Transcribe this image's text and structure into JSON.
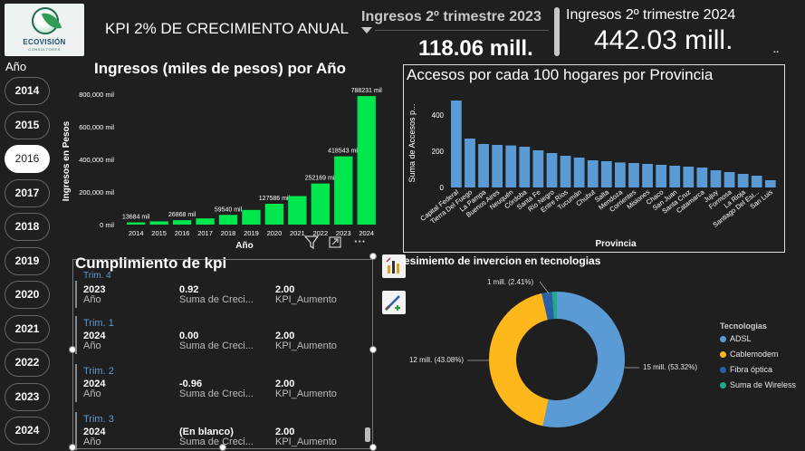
{
  "logo": {
    "name": "ECOVISIÓN",
    "subtitle": "CONSULTORES"
  },
  "header": {
    "kpi_title": "KPI 2% DE CRECIMIENTO ANUAL",
    "card_2023": {
      "title": "Ingresos 2º trimestre 2023",
      "value": "118.06 mill."
    },
    "card_2024": {
      "title": "Ingresos 2º trimestre 2024",
      "value": "442.03 mill."
    }
  },
  "year_slicer": {
    "title": "Año",
    "years": [
      "2014",
      "2015",
      "2016",
      "2017",
      "2018",
      "2019",
      "2020",
      "2021",
      "2022",
      "2023",
      "2024"
    ],
    "selected": "2016"
  },
  "bar_chart": {
    "title": "Ingresos (miles de pesos) por Año",
    "toolbar": {
      "filter_icon": "filter-icon",
      "focus_icon": "focus-mode-icon",
      "more_label": "···"
    },
    "chart_data": {
      "type": "bar",
      "title": "Ingresos (miles de pesos) por Año",
      "xlabel": "Año",
      "ylabel": "Ingresos en Pesos",
      "categories": [
        "2014",
        "2015",
        "2016",
        "2017",
        "2018",
        "2019",
        "2020",
        "2021",
        "2022",
        "2023",
        "2024"
      ],
      "values": [
        13684,
        20000,
        26868,
        38000,
        59540,
        90000,
        127586,
        175000,
        252169,
        418543,
        788231
      ],
      "data_labels": [
        "13684 mil",
        "",
        "26868 mil",
        "",
        "59540 mil",
        "",
        "127586 mil",
        "",
        "252169 mil",
        "418543 mil",
        "788231 mil"
      ],
      "yticks": [
        "0 mil",
        "200,000 mil",
        "400,000 mil",
        "600,000 mil",
        "800,000 mil"
      ],
      "ylim": [
        0,
        800000
      ],
      "color": "#00e64d"
    }
  },
  "provincia_chart": {
    "title": "Accesos por cada 100 hogares por Provincia",
    "chart_data": {
      "type": "bar",
      "title": "Accesos por cada 100 hogares por Provincia",
      "xlabel": "Provincia",
      "ylabel": "Suma de Accesos p...",
      "categories": [
        "Capital Federal",
        "Tierra Del Fuego",
        "La Pampa",
        "Buenos Aires",
        "Neuquén",
        "Córdoba",
        "Santa Fe",
        "Río Negro",
        "Entre Ríos",
        "Tucumán",
        "Chubut",
        "Salta",
        "Mendoza",
        "Corrientes",
        "Misiones",
        "Chaco",
        "San Juan",
        "Santa Cruz",
        "Catamarca",
        "Jujuy",
        "Formosa",
        "La Rioja",
        "Santiago Del Est...",
        "San Luis"
      ],
      "values": [
        480,
        270,
        240,
        235,
        232,
        225,
        205,
        190,
        175,
        165,
        150,
        145,
        138,
        135,
        130,
        125,
        120,
        115,
        110,
        95,
        85,
        75,
        65,
        40
      ],
      "yticks": [
        "0",
        "200",
        "400"
      ],
      "ylim": [
        0,
        500
      ],
      "color": "#5b9bd5"
    }
  },
  "kpi_table": {
    "title": "Cumplimiento de kpi",
    "top_partial_label": "Trim. 4",
    "rows": [
      {
        "trim": "",
        "year": "2023",
        "year_label": "Año",
        "value": "0.92",
        "value_label": "Suma de Creci...",
        "kpi": "2.00",
        "kpi_label": "KPI_Aumento"
      },
      {
        "trim": "Trim. 1",
        "year": "2024",
        "year_label": "Año",
        "value": "0.00",
        "value_label": "Suma de Creci...",
        "kpi": "2.00",
        "kpi_label": "KPI_Aumento"
      },
      {
        "trim": "Trim. 2",
        "year": "2024",
        "year_label": "Año",
        "value": "-0.96",
        "value_label": "Suma de Creci...",
        "kpi": "2.00",
        "kpi_label": "KPI_Aumento"
      },
      {
        "trim": "Trim. 3",
        "year": "2024",
        "year_label": "Año",
        "value": "(En blanco)",
        "value_label": "Suma de Creci...",
        "kpi": "2.00",
        "kpi_label": "KPI_Aumento"
      }
    ]
  },
  "side_buttons": [
    "chart-format-icon",
    "paint-brush-icon"
  ],
  "donut_chart": {
    "title": "esimiento de invercion en tecnologias",
    "legend_title": "Tecnologias",
    "chart_data": {
      "type": "pie",
      "title": "esimiento de invercion en tecnologias",
      "categories": [
        "ADSL",
        "Cablemodem",
        "Fibra óptica",
        "Suma de Wireless"
      ],
      "values": [
        53.32,
        43.08,
        2.41,
        1.19
      ],
      "labels": [
        "15 mill. (53.32%)",
        "12 mill. (43.08%)",
        "1 mill. (2.41%)",
        ""
      ],
      "colors": [
        "#5b9bd5",
        "#ffb81c",
        "#2b5fa8",
        "#1faa8a"
      ],
      "legend": "right"
    }
  }
}
